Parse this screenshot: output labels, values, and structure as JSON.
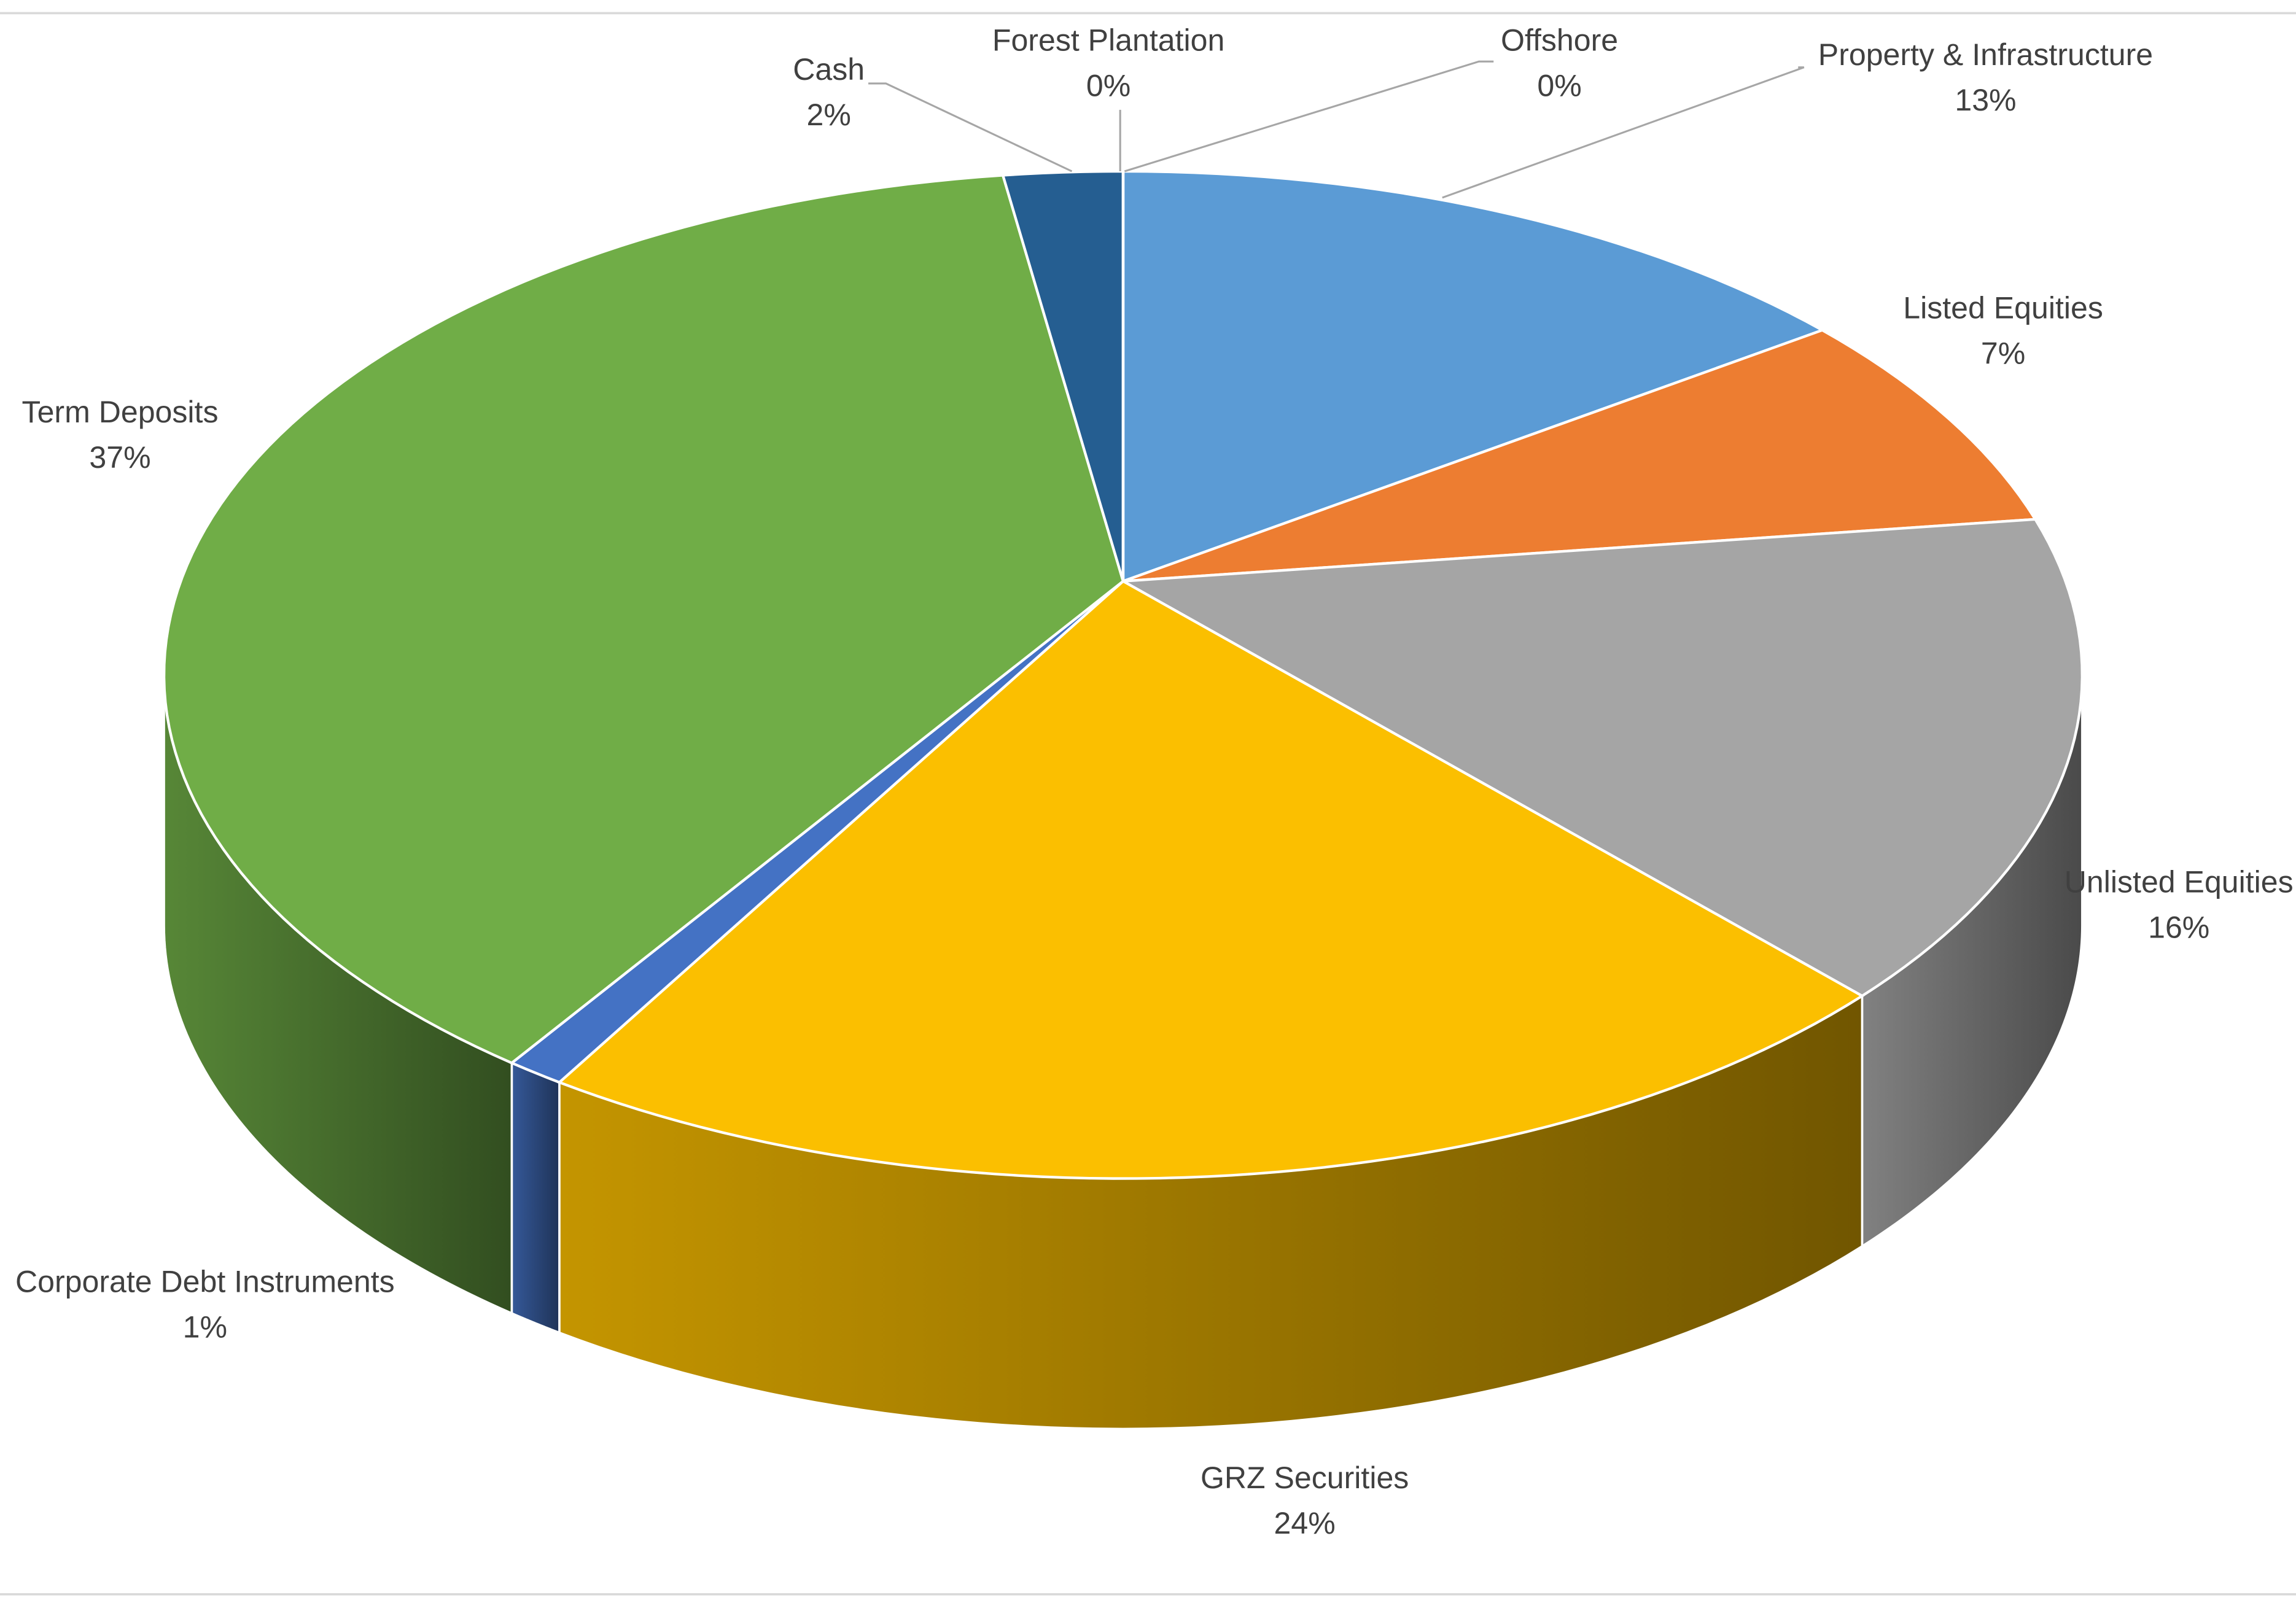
{
  "chart_data": {
    "type": "pie3d",
    "categories": [
      "Property & Infrastructure",
      "Listed Equities",
      "Unlisted Equities",
      "GRZ Securities",
      "Corporate Debt Instruments",
      "Term Deposits",
      "Cash",
      "Forest Plantation",
      "Offshore"
    ],
    "values": [
      13,
      7,
      16,
      24,
      1,
      37,
      2,
      0,
      0
    ],
    "value_labels": [
      "13%",
      "7%",
      "16%",
      "24%",
      "1%",
      "37%",
      "2%",
      "0%",
      "0%"
    ],
    "colors": [
      "#5b9bd5",
      "#ed7d31",
      "#a5a5a5",
      "#fbbf00",
      "#4472c4",
      "#70ad47",
      "#255e91",
      "#636363",
      "#9e480e"
    ]
  }
}
